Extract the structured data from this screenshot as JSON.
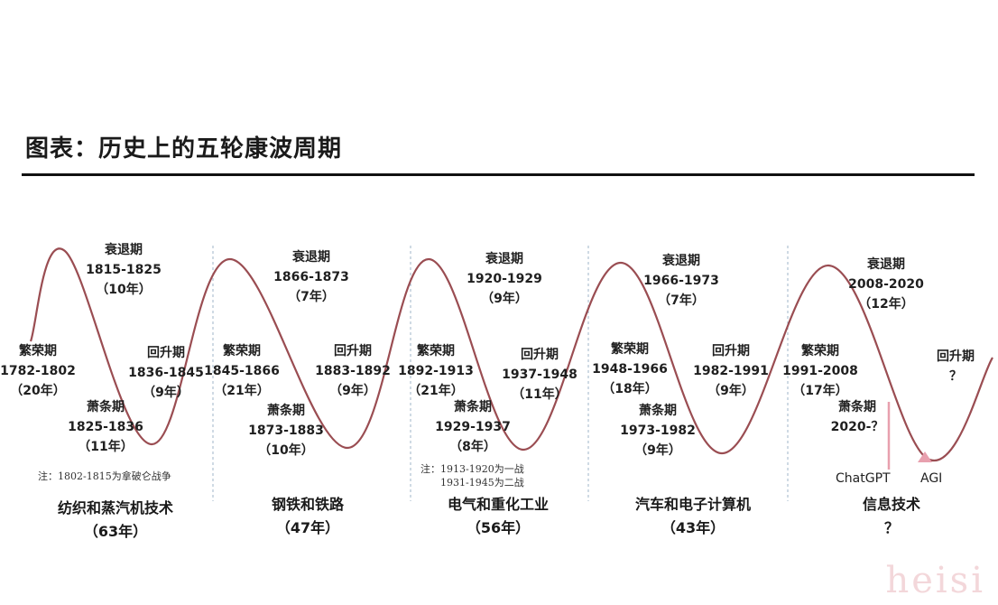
{
  "title": "图表：历史上的五轮康波周期",
  "colors": {
    "wave": "#9a4d52",
    "divider": "#9fb4c8",
    "marker": "#e8a0ae"
  },
  "cycles": [
    {
      "boom": {
        "name": "繁荣期",
        "years": "1782-1802",
        "dur": "（20年）"
      },
      "recession": {
        "name": "衰退期",
        "years": "1815-1825",
        "dur": "（10年）"
      },
      "depression": {
        "name": "萧条期",
        "years": "1825-1836",
        "dur": "（11年）"
      },
      "recovery": {
        "name": "回升期",
        "years": "1836-1845",
        "dur": "（9年）"
      },
      "era": {
        "name": "纺织和蒸汽机技术",
        "dur": "（63年）"
      },
      "note": [
        "注：1802-1815为拿破仑战争"
      ]
    },
    {
      "boom": {
        "name": "繁荣期",
        "years": "1845-1866",
        "dur": "（21年）"
      },
      "recession": {
        "name": "衰退期",
        "years": "1866-1873",
        "dur": "（7年）"
      },
      "depression": {
        "name": "萧条期",
        "years": "1873-1883",
        "dur": "（10年）"
      },
      "recovery": {
        "name": "回升期",
        "years": "1883-1892",
        "dur": "（9年）"
      },
      "era": {
        "name": "钢铁和铁路",
        "dur": "（47年）"
      },
      "note": []
    },
    {
      "boom": {
        "name": "繁荣期",
        "years": "1892-1913",
        "dur": "（21年）"
      },
      "recession": {
        "name": "衰退期",
        "years": "1920-1929",
        "dur": "（9年）"
      },
      "depression": {
        "name": "萧条期",
        "years": "1929-1937",
        "dur": "（8年）"
      },
      "recovery": {
        "name": "回升期",
        "years": "1937-1948",
        "dur": "（11年）"
      },
      "era": {
        "name": "电气和重化工业",
        "dur": "（56年）"
      },
      "note": [
        "注：1913-1920为一战",
        "1931-1945为二战"
      ]
    },
    {
      "boom": {
        "name": "繁荣期",
        "years": "1948-1966",
        "dur": "（18年）"
      },
      "recession": {
        "name": "衰退期",
        "years": "1966-1973",
        "dur": "（7年）"
      },
      "depression": {
        "name": "萧条期",
        "years": "1973-1982",
        "dur": "（9年）"
      },
      "recovery": {
        "name": "回升期",
        "years": "1982-1991",
        "dur": "（9年）"
      },
      "era": {
        "name": "汽车和电子计算机",
        "dur": "（43年）"
      },
      "note": []
    },
    {
      "boom": {
        "name": "繁荣期",
        "years": "1991-2008",
        "dur": "（17年）"
      },
      "recession": {
        "name": "衰退期",
        "years": "2008-2020",
        "dur": "（12年）"
      },
      "depression": {
        "name": "萧条期",
        "years": "2020-？",
        "dur": ""
      },
      "recovery": {
        "name": "回升期",
        "years": "？",
        "dur": ""
      },
      "era": {
        "name": "信息技术",
        "dur": "？"
      },
      "note": []
    }
  ],
  "markers": {
    "chatgpt": "ChatGPT",
    "agi": "AGI"
  },
  "watermark": "heisi"
}
